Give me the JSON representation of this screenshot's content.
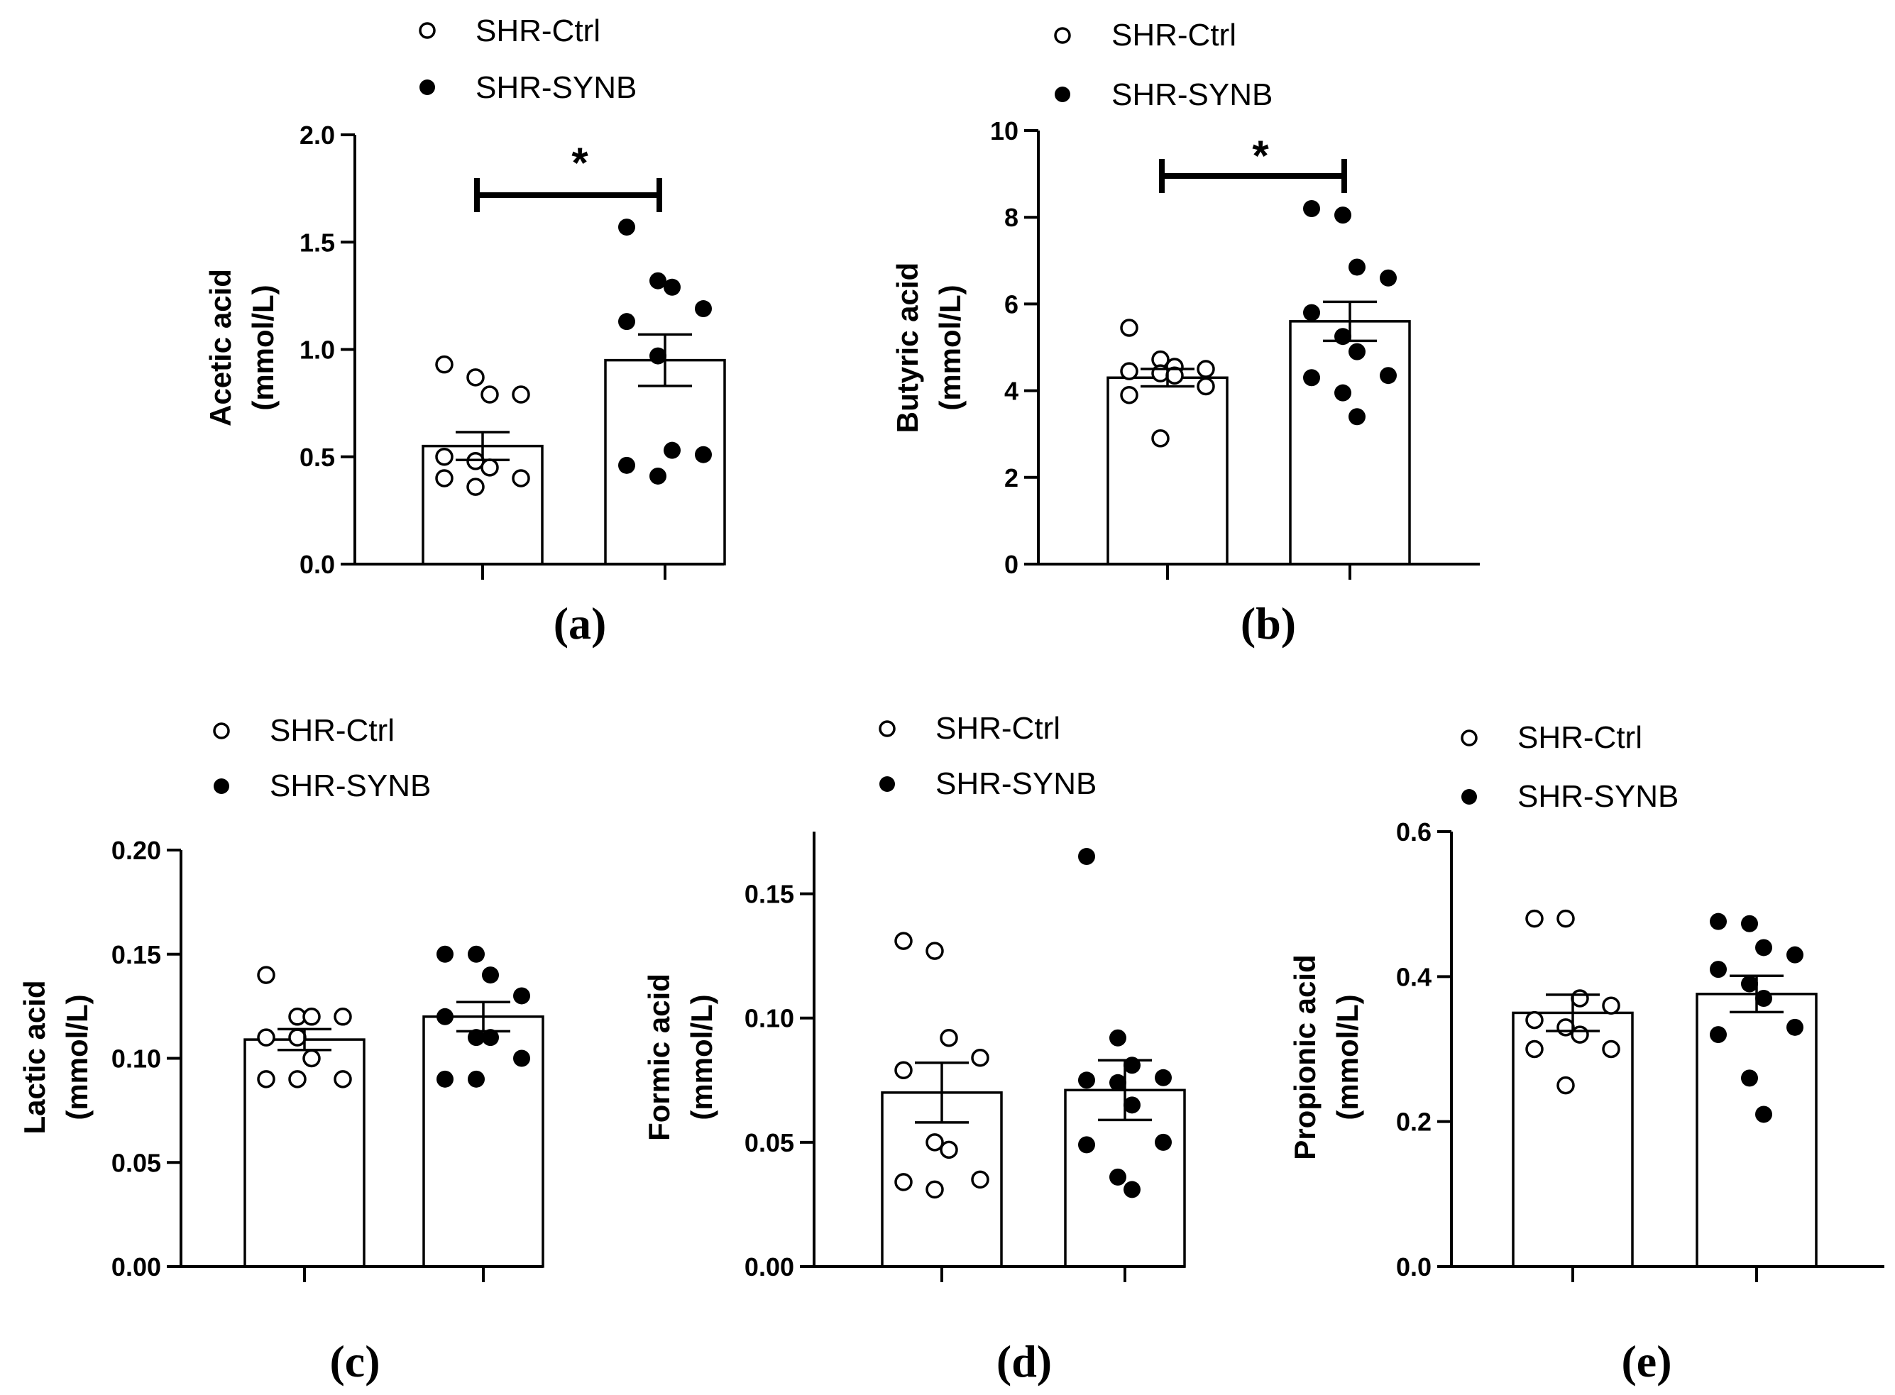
{
  "legend": {
    "ctrl_label": "SHR-Ctrl",
    "synb_label": "SHR-SYNB"
  },
  "chart_data": [
    {
      "type": "bar",
      "panel_label": "(a)",
      "ylabel_line1": "Acetic acid",
      "ylabel_line2": "(mmol/L)",
      "ylim": [
        0,
        2.0
      ],
      "yticks": [
        0.0,
        0.5,
        1.0,
        1.5,
        2.0
      ],
      "ytick_labels": [
        "0.0",
        "0.5",
        "1.0",
        "1.5",
        "2.0"
      ],
      "categories": [
        "SHR-Ctrl",
        "SHR-SYNB"
      ],
      "values": [
        0.55,
        0.95
      ],
      "sem": [
        0.065,
        0.12
      ],
      "points": [
        [
          0.93,
          0.87,
          0.79,
          0.79,
          0.5,
          0.48,
          0.45,
          0.4,
          0.4,
          0.36
        ],
        [
          1.57,
          1.32,
          1.29,
          1.19,
          1.13,
          0.97,
          0.53,
          0.51,
          0.46,
          0.41
        ]
      ],
      "significance": "*"
    },
    {
      "type": "bar",
      "panel_label": "(b)",
      "ylabel_line1": "Butyric acid",
      "ylabel_line2": "(mmol/L)",
      "ylim": [
        0,
        10
      ],
      "yticks": [
        0,
        2,
        4,
        6,
        8,
        10
      ],
      "ytick_labels": [
        "0",
        "2",
        "4",
        "6",
        "8",
        "10"
      ],
      "categories": [
        "SHR-Ctrl",
        "SHR-SYNB"
      ],
      "values": [
        4.3,
        5.6
      ],
      "sem": [
        0.2,
        0.45
      ],
      "points": [
        [
          5.45,
          4.72,
          4.55,
          4.5,
          4.45,
          4.4,
          4.35,
          4.1,
          3.9,
          2.9
        ],
        [
          8.2,
          8.05,
          6.85,
          6.6,
          5.8,
          5.25,
          4.9,
          4.35,
          4.3,
          3.95,
          3.4
        ]
      ],
      "significance": "*"
    },
    {
      "type": "bar",
      "panel_label": "(c)",
      "ylabel_line1": "Lactic acid",
      "ylabel_line2": "(mmol/L)",
      "ylim": [
        0,
        0.2
      ],
      "yticks": [
        0.0,
        0.05,
        0.1,
        0.15,
        0.2
      ],
      "ytick_labels": [
        "0.00",
        "0.05",
        "0.10",
        "0.15",
        "0.20"
      ],
      "categories": [
        "SHR-Ctrl",
        "SHR-SYNB"
      ],
      "values": [
        0.109,
        0.12
      ],
      "sem": [
        0.005,
        0.007
      ],
      "points": [
        [
          0.14,
          0.12,
          0.12,
          0.12,
          0.11,
          0.11,
          0.1,
          0.09,
          0.09,
          0.09
        ],
        [
          0.15,
          0.15,
          0.14,
          0.13,
          0.12,
          0.11,
          0.11,
          0.1,
          0.09,
          0.09
        ]
      ],
      "significance": ""
    },
    {
      "type": "bar",
      "panel_label": "(d)",
      "ylabel_line1": "Formic acid",
      "ylabel_line2": "(mmol/L)",
      "ylim": [
        0,
        0.175
      ],
      "yticks": [
        0.0,
        0.05,
        0.1,
        0.15
      ],
      "ytick_labels": [
        "0.00",
        "0.05",
        "0.10",
        "0.15"
      ],
      "categories": [
        "SHR-Ctrl",
        "SHR-SYNB"
      ],
      "values": [
        0.07,
        0.071
      ],
      "sem": [
        0.012,
        0.012
      ],
      "points": [
        [
          0.131,
          0.127,
          0.092,
          0.084,
          0.079,
          0.05,
          0.047,
          0.035,
          0.034,
          0.031
        ],
        [
          0.165,
          0.092,
          0.081,
          0.076,
          0.075,
          0.074,
          0.065,
          0.05,
          0.049,
          0.036,
          0.031
        ]
      ],
      "significance": ""
    },
    {
      "type": "bar",
      "panel_label": "(e)",
      "ylabel_line1": "Propionic acid",
      "ylabel_line2": "(mmol/L)",
      "ylim": [
        0,
        0.6
      ],
      "yticks": [
        0.0,
        0.2,
        0.4,
        0.6
      ],
      "ytick_labels": [
        "0.0",
        "0.2",
        "0.4",
        "0.6"
      ],
      "categories": [
        "SHR-Ctrl",
        "SHR-SYNB"
      ],
      "values": [
        0.35,
        0.376
      ],
      "sem": [
        0.025,
        0.025
      ],
      "points": [
        [
          0.48,
          0.48,
          0.37,
          0.36,
          0.34,
          0.33,
          0.32,
          0.3,
          0.3,
          0.25
        ],
        [
          0.476,
          0.473,
          0.44,
          0.43,
          0.41,
          0.39,
          0.37,
          0.33,
          0.32,
          0.26,
          0.21
        ]
      ],
      "significance": ""
    }
  ]
}
